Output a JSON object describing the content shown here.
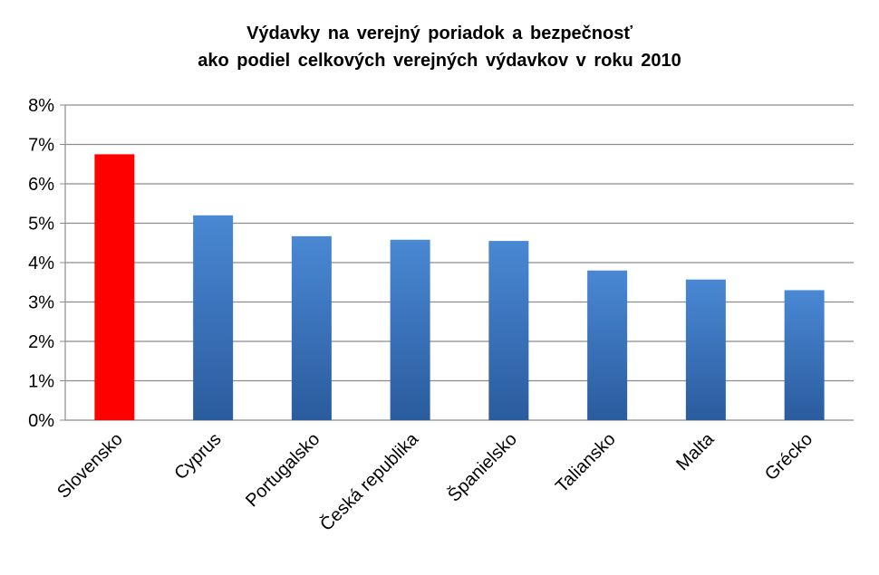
{
  "chart_data": {
    "type": "bar",
    "title": [
      "Výdavky na verejný poriadok a bezpečnosť",
      "ako podiel celkových verejných výdavkov v roku 2010"
    ],
    "categories": [
      "Slovensko",
      "Cyprus",
      "Portugalsko",
      "Česká republika",
      "Španielsko",
      "Taliansko",
      "Malta",
      "Grécko"
    ],
    "values": [
      6.75,
      5.2,
      4.67,
      4.58,
      4.55,
      3.8,
      3.57,
      3.3
    ],
    "ylim": [
      0,
      8
    ],
    "yticks": [
      0,
      1,
      2,
      3,
      4,
      5,
      6,
      7,
      8
    ],
    "ytick_labels": [
      "0%",
      "1%",
      "2%",
      "3%",
      "4%",
      "5%",
      "6%",
      "7%",
      "8%"
    ],
    "grid": true,
    "legend": "none",
    "colors": {
      "default_top": "#4A88D4",
      "default_bottom": "#2A5C9E",
      "highlight": "#FF0000",
      "highlight_index": 0,
      "gridline": "#8C8C8C",
      "axis": "#8C8C8C"
    }
  }
}
